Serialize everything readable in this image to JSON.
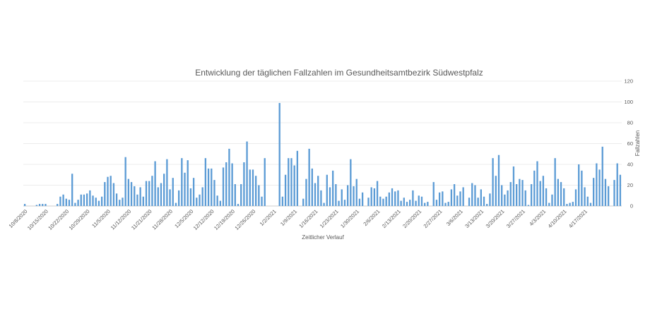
{
  "chart_data": {
    "type": "bar",
    "title": "Entwicklung der täglichen Fallzahlen im Gesundheitsamtbezirk Südwestpfalz",
    "xlabel": "Zeitlicher Verlauf",
    "ylabel": "Fallzahlen",
    "ylim": [
      0,
      120
    ],
    "y_axis_side": "right",
    "y_ticks": [
      "0",
      "20",
      "40",
      "60",
      "80",
      "100",
      "120"
    ],
    "grid": true,
    "legend": "none",
    "bar_color": "#5b9bd5",
    "x_tick_labels": [
      "10/8/2020",
      "10/15/2020",
      "10/22/2020",
      "10/29/2020",
      "11/5/2020",
      "11/12/2020",
      "11/21/2020",
      "11/28/2020",
      "12/5/2020",
      "12/12/2020",
      "12/19/2020",
      "12/26/2020",
      "1/2/2021",
      "1/9/2021",
      "1/16/2021",
      "1/23/2021",
      "1/30/2021",
      "2/6/2021",
      "2/13/2021",
      "2/20/2021",
      "2/27/2021",
      "3/6/2021",
      "3/13/2021",
      "3/20/2021",
      "3/27/2021",
      "4/3/2021",
      "4/10/2021",
      "4/17/2021"
    ],
    "values": [
      2,
      0,
      0,
      0,
      1,
      2,
      2,
      2,
      0,
      0,
      0,
      2,
      9,
      11,
      7,
      6,
      31,
      3,
      6,
      11,
      11,
      12,
      15,
      10,
      8,
      5,
      9,
      23,
      28,
      29,
      22,
      12,
      6,
      8,
      47,
      26,
      23,
      19,
      11,
      18,
      9,
      24,
      24,
      29,
      43,
      18,
      22,
      31,
      45,
      16,
      27,
      3,
      15,
      46,
      32,
      44,
      17,
      27,
      8,
      11,
      18,
      46,
      36,
      36,
      25,
      10,
      5,
      37,
      42,
      55,
      41,
      21,
      2,
      21,
      42,
      62,
      35,
      35,
      29,
      20,
      9,
      46,
      0,
      0,
      0,
      0,
      99,
      9,
      30,
      46,
      46,
      39,
      53,
      0,
      7,
      26,
      55,
      36,
      22,
      29,
      15,
      3,
      30,
      18,
      34,
      21,
      5,
      16,
      6,
      20,
      45,
      19,
      26,
      7,
      13,
      0,
      8,
      18,
      17,
      24,
      9,
      7,
      9,
      13,
      17,
      14,
      15,
      5,
      8,
      4,
      6,
      15,
      5,
      10,
      9,
      3,
      4,
      0,
      23,
      6,
      13,
      14,
      3,
      4,
      16,
      21,
      10,
      14,
      18,
      0,
      8,
      22,
      20,
      8,
      16,
      9,
      2,
      12,
      46,
      29,
      49,
      20,
      11,
      15,
      23,
      38,
      21,
      26,
      25,
      15,
      1,
      21,
      34,
      43,
      24,
      29,
      17,
      3,
      11,
      46,
      26,
      23,
      17,
      2,
      3,
      4,
      16,
      40,
      34,
      18,
      9,
      3,
      27,
      41,
      35,
      57,
      26,
      19,
      0,
      25,
      41,
      30
    ]
  }
}
